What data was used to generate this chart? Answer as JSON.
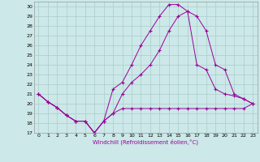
{
  "xlabel": "Windchill (Refroidissement éolien,°C)",
  "bg_color": "#cce8e8",
  "grid_color": "#aacccc",
  "line_color": "#990099",
  "xlim": [
    -0.5,
    23.5
  ],
  "ylim": [
    17,
    30.5
  ],
  "yticks": [
    17,
    18,
    19,
    20,
    21,
    22,
    23,
    24,
    25,
    26,
    27,
    28,
    29,
    30
  ],
  "xticks": [
    0,
    1,
    2,
    3,
    4,
    5,
    6,
    7,
    8,
    9,
    10,
    11,
    12,
    13,
    14,
    15,
    16,
    17,
    18,
    19,
    20,
    21,
    22,
    23
  ],
  "series1_x": [
    0,
    1,
    2,
    3,
    4,
    5,
    6,
    7,
    8,
    9,
    10,
    11,
    12,
    13,
    14,
    15,
    16,
    17,
    18,
    19,
    20,
    21,
    22,
    23
  ],
  "series1_y": [
    21.0,
    20.2,
    19.6,
    18.8,
    18.2,
    18.2,
    17.0,
    18.2,
    19.0,
    19.5,
    19.5,
    19.5,
    19.5,
    19.5,
    19.5,
    19.5,
    19.5,
    19.5,
    19.5,
    19.5,
    19.5,
    19.5,
    19.5,
    20.0
  ],
  "series2_x": [
    0,
    1,
    2,
    3,
    4,
    5,
    6,
    7,
    8,
    9,
    10,
    11,
    12,
    13,
    14,
    15,
    16,
    17,
    18,
    19,
    20,
    21,
    22,
    23
  ],
  "series2_y": [
    21.0,
    20.2,
    19.6,
    18.8,
    18.2,
    18.2,
    17.0,
    18.2,
    19.0,
    21.0,
    22.2,
    23.0,
    24.0,
    25.5,
    27.5,
    29.0,
    29.5,
    24.0,
    23.5,
    21.5,
    21.0,
    20.8,
    20.5,
    20.0
  ],
  "series3_x": [
    0,
    1,
    2,
    3,
    4,
    5,
    6,
    7,
    8,
    9,
    10,
    11,
    12,
    13,
    14,
    15,
    16,
    17,
    18,
    19,
    20,
    21,
    22,
    23
  ],
  "series3_y": [
    21.0,
    20.2,
    19.6,
    18.8,
    18.2,
    18.2,
    17.0,
    18.2,
    21.5,
    22.2,
    24.0,
    26.0,
    27.5,
    29.0,
    30.2,
    30.2,
    29.5,
    29.0,
    27.5,
    24.0,
    23.5,
    21.0,
    20.5,
    20.0
  ]
}
